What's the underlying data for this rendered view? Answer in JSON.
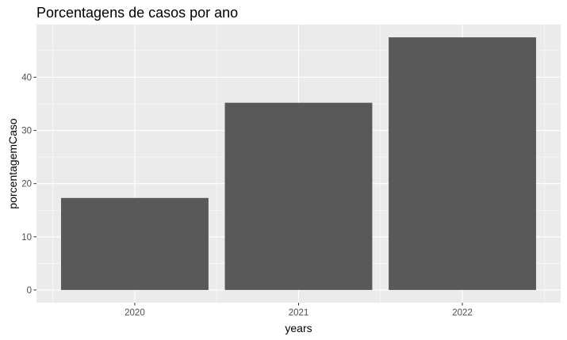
{
  "chart_data": {
    "type": "bar",
    "title": "Porcentagens de casos por ano",
    "xlabel": "years",
    "ylabel": "porcentagemCaso",
    "categories": [
      "2020",
      "2021",
      "2022"
    ],
    "values": [
      17.3,
      35.2,
      47.5
    ],
    "ylim": [
      -2.4,
      49.9
    ],
    "yticks": [
      0,
      10,
      20,
      30,
      40
    ],
    "grid": true,
    "legend": "none",
    "colors": {
      "bar": "#595959",
      "panel": "#ebebeb",
      "grid": "#ffffff",
      "tick_text": "#4d4d4d"
    }
  }
}
